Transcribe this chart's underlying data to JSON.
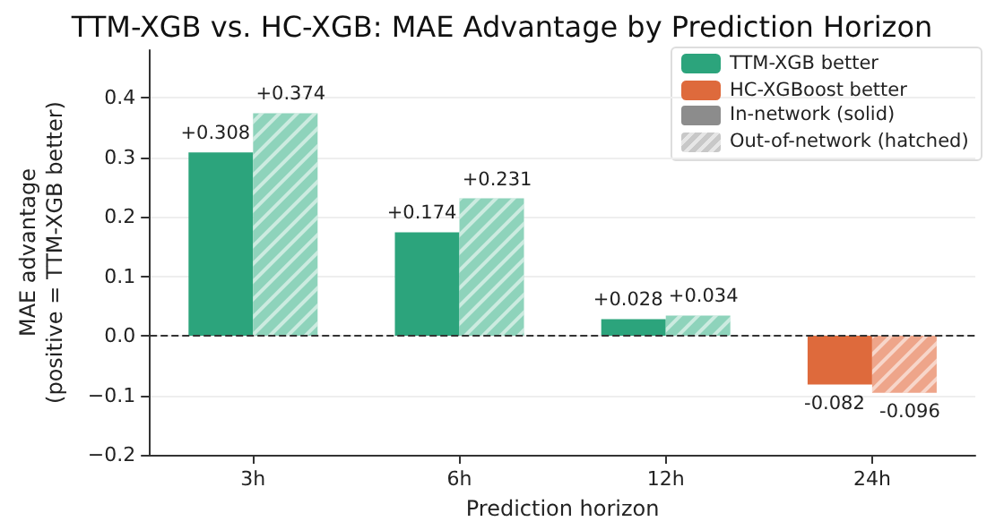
{
  "chart_data": {
    "type": "bar",
    "title": "TTM-XGB vs. HC-XGB: MAE Advantage by Prediction Horizon",
    "xlabel": "Prediction horizon",
    "ylabel": "MAE advantage\n(positive = TTM-XGB better)",
    "categories": [
      "3h",
      "6h",
      "12h",
      "24h"
    ],
    "series": [
      {
        "name": "TTM-XGB better",
        "color": "#2ca47c",
        "values": [
          null,
          null,
          null,
          null
        ]
      },
      {
        "name": "HC-XGBoost better",
        "color": "#de6a3c",
        "values": [
          null,
          null,
          null,
          null
        ]
      },
      {
        "color": "#2ca47c",
        "values": [
          0.308,
          0.174,
          0.028,
          -0.082
        ],
        "colors": [
          "#2ca47c",
          "#2ca47c",
          "#2ca47c",
          "#de6a3c"
        ],
        "value_labels": [
          "+0.308",
          "+0.174",
          "+0.028",
          "-0.082"
        ]
      },
      {
        "color": "#8ed3bb",
        "values": [
          0.374,
          0.231,
          0.034,
          -0.096
        ],
        "colors": [
          "#8ed3bb",
          "#8ed3bb",
          "#8ed3bb",
          "#eea58a"
        ],
        "value_labels": [
          "+0.374",
          "+0.231",
          "+0.034",
          "-0.096"
        ]
      }
    ],
    "ylim": [
      -0.2,
      0.48
    ],
    "yticks": [
      -0.2,
      -0.1,
      {
        "value": 0,
        "label": "0.0"
      },
      0.1,
      0.2,
      0.3,
      0.4
    ],
    "annotations": [
      "In-network (solid)",
      "Out-of-network (hatched)"
    ],
    "grid": "y",
    "legend": "top right",
    "ref_lines": [
      {
        "axis": "y",
        "value": 0,
        "color": "#333333",
        "line_style": "dashed"
      }
    ]
  }
}
